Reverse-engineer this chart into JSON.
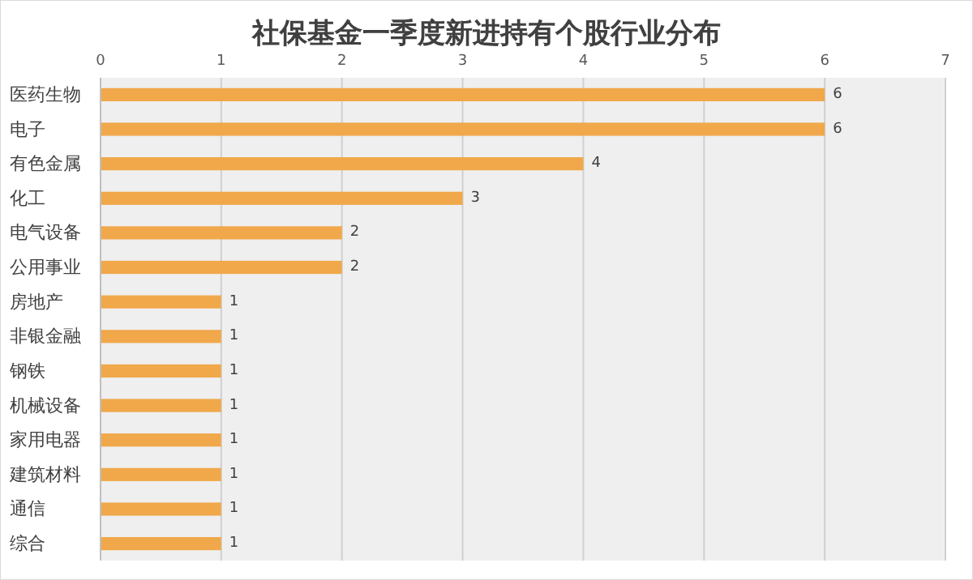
{
  "chart_data": {
    "type": "bar",
    "orientation": "horizontal",
    "title": "社保基金一季度新进持有个股行业分布",
    "categories": [
      "医药生物",
      "电子",
      "有色金属",
      "化工",
      "电气设备",
      "公用事业",
      "房地产",
      "非银金融",
      "钢铁",
      "机械设备",
      "家用电器",
      "建筑材料",
      "通信",
      "综合"
    ],
    "values": [
      6,
      6,
      4,
      3,
      2,
      2,
      1,
      1,
      1,
      1,
      1,
      1,
      1,
      1
    ],
    "color": "#f0a84a",
    "xlim": [
      0,
      7
    ],
    "xticks": [
      0,
      1,
      2,
      3,
      4,
      5,
      6,
      7
    ],
    "grid": "x",
    "data_labels": true
  }
}
